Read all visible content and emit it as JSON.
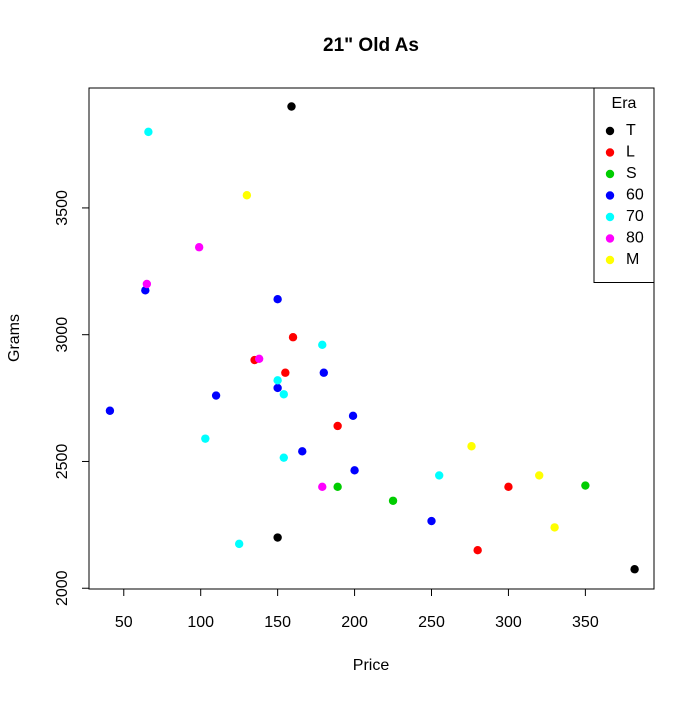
{
  "chart_data": {
    "type": "scatter",
    "title": "21\" Old As",
    "x_label": "Price",
    "y_label": "Grams",
    "legend_title": "Era",
    "legend": "topright",
    "xlim": [
      27.4,
      394.6
    ],
    "ylim": [
      1997,
      3973
    ],
    "xticks": [
      50,
      100,
      150,
      200,
      250,
      300,
      350
    ],
    "yticks": [
      2000,
      2500,
      3000,
      3500
    ],
    "series": [
      {
        "name": "T",
        "color": "#000000",
        "x": [
          159,
          150,
          382
        ],
        "values": [
          3900,
          2200,
          2075
        ]
      },
      {
        "name": "L",
        "color": "#ff0000",
        "x": [
          160,
          135,
          155,
          189,
          300,
          280
        ],
        "values": [
          2990,
          2900,
          2850,
          2640,
          2400,
          2150
        ]
      },
      {
        "name": "S",
        "color": "#00cd00",
        "x": [
          189,
          225,
          350
        ],
        "values": [
          2400,
          2345,
          2405
        ]
      },
      {
        "name": "60",
        "color": "#0000ff",
        "x": [
          64,
          150,
          180,
          110,
          150,
          41,
          199,
          166,
          200,
          250
        ],
        "values": [
          3175,
          3140,
          2850,
          2760,
          2790,
          2700,
          2680,
          2540,
          2465,
          2265
        ]
      },
      {
        "name": "70",
        "color": "#00ffff",
        "x": [
          66,
          179,
          150,
          154,
          103,
          154,
          255,
          125
        ],
        "values": [
          3800,
          2960,
          2820,
          2765,
          2590,
          2515,
          2445,
          2175
        ]
      },
      {
        "name": "80",
        "color": "#ff00ff",
        "x": [
          99,
          65,
          138,
          179
        ],
        "values": [
          3345,
          3200,
          2905,
          2400
        ]
      },
      {
        "name": "M",
        "color": "#ffff00",
        "x": [
          130,
          276,
          320,
          330
        ],
        "values": [
          3550,
          2560,
          2445,
          2240
        ]
      }
    ]
  }
}
